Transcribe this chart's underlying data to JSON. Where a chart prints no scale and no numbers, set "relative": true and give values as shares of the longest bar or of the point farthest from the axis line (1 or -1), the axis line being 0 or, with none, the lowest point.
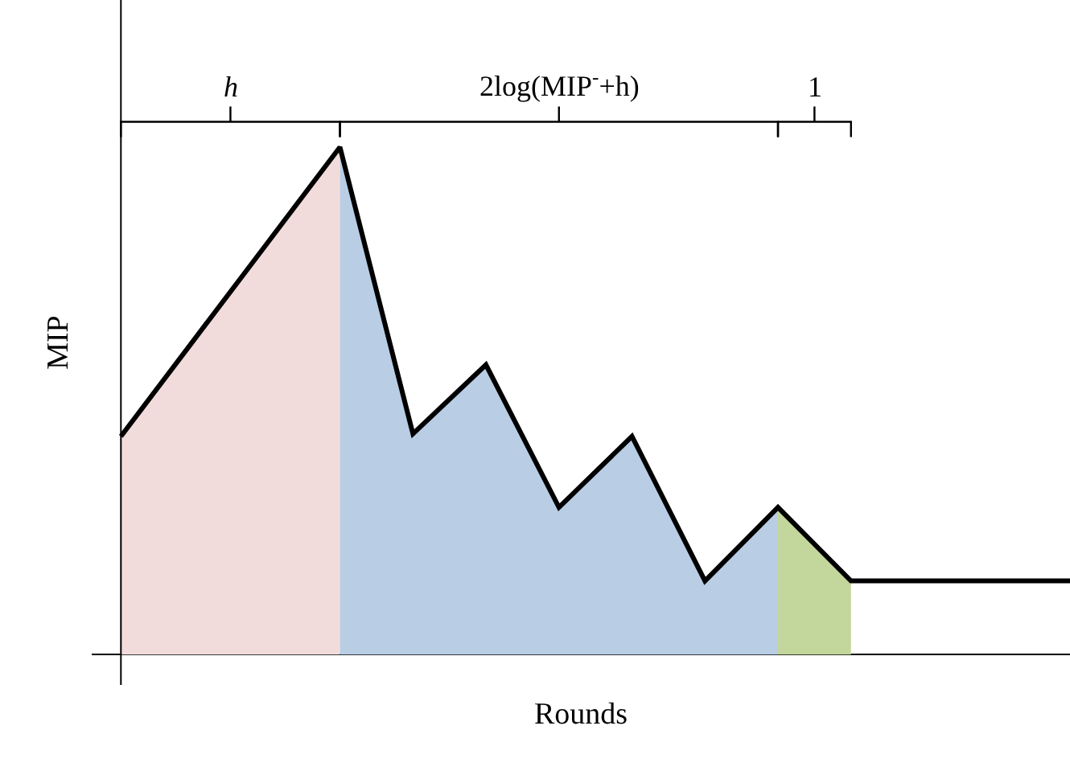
{
  "chart_data": {
    "type": "line",
    "relative": true,
    "xlabel": "Rounds",
    "ylabel": "MIP",
    "marker": "none",
    "line_style": "solid",
    "categories": [
      null,
      null,
      null,
      null,
      null,
      null,
      null,
      null,
      null,
      null,
      null,
      null,
      null,
      null
    ],
    "annotations": [
      "h",
      "2log(MIP$^{-}$+h)",
      "1"
    ],
    "series": [
      {
        "type": "area",
        "color": "#f2dcdb",
        "values": [
          0.43,
          0.62,
          0.81,
          1,
          null,
          null,
          null,
          null,
          null,
          null,
          null,
          null,
          null,
          null
        ]
      },
      {
        "type": "area",
        "color": "#b9cde5",
        "values": [
          null,
          null,
          null,
          1,
          0.435,
          0.571,
          0.29,
          0.43,
          0.145,
          0.29,
          null,
          null,
          null,
          null
        ]
      },
      {
        "type": "area",
        "color": "#c3d69b",
        "values": [
          null,
          null,
          null,
          null,
          null,
          null,
          null,
          null,
          null,
          0.29,
          0.145,
          null,
          null,
          null
        ]
      },
      {
        "color": "#000000",
        "values": [
          0.43,
          0.62,
          0.81,
          1,
          0.435,
          0.571,
          0.29,
          0.43,
          0.145,
          0.29,
          0.145,
          0.145,
          0.145,
          0.145
        ]
      }
    ]
  }
}
